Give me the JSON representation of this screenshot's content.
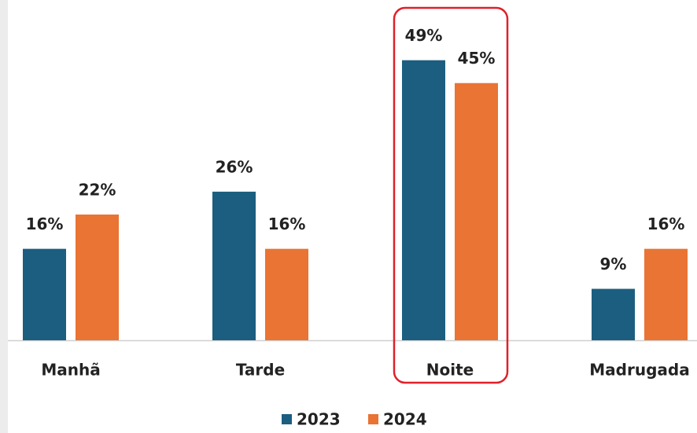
{
  "chart_data": {
    "type": "bar",
    "categories": [
      "Manhã",
      "Tarde",
      "Noite",
      "Madrugada"
    ],
    "series": [
      {
        "name": "2023",
        "color": "#1b5e80",
        "values": [
          16,
          26,
          49,
          9
        ],
        "value_labels": [
          "16%",
          "26%",
          "49%",
          "9%"
        ]
      },
      {
        "name": "2024",
        "color": "#e97434",
        "values": [
          22,
          16,
          45,
          16
        ],
        "value_labels": [
          "22%",
          "16%",
          "45%",
          "16%"
        ]
      }
    ],
    "ylim": [
      0,
      55
    ],
    "legend": "bottom"
  }
}
